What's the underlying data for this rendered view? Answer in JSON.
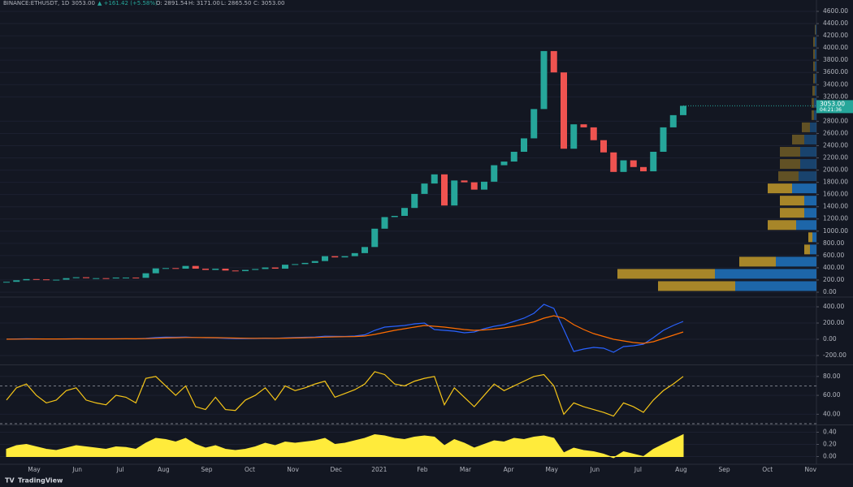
{
  "header": {
    "symbol": "BINANCE:ETHUSDT, 1D",
    "last": "3053.00",
    "change": "▲ +161.42 (+5.58%)",
    "open": "O: 2891.54",
    "high": "H: 3171.00",
    "low": "L: 2865.50",
    "close": "C: 3053.00"
  },
  "price_tag": {
    "price": "3053.00",
    "timer": "04:21:36"
  },
  "x_labels": [
    "May",
    "Jun",
    "Jul",
    "Aug",
    "Sep",
    "Oct",
    "Nov",
    "Dec",
    "2021",
    "Feb",
    "Mar",
    "Apr",
    "May",
    "Jun",
    "Jul",
    "Aug",
    "Sep",
    "Oct",
    "Nov"
  ],
  "footer": "TradingView",
  "chart_data": [
    {
      "type": "candlestick",
      "up_color": "#26a69a",
      "down_color": "#ef5350",
      "close": [
        170,
        195,
        215,
        210,
        200,
        205,
        230,
        245,
        230,
        230,
        225,
        240,
        240,
        235,
        310,
        390,
        395,
        385,
        430,
        385,
        365,
        385,
        355,
        345,
        365,
        380,
        405,
        385,
        450,
        460,
        480,
        510,
        590,
        570,
        590,
        640,
        740,
        1040,
        1230,
        1250,
        1380,
        1610,
        1780,
        1930,
        1420,
        1830,
        1800,
        1680,
        1810,
        2080,
        2140,
        2300,
        2520,
        3000,
        3950,
        3600,
        2350,
        2750,
        2700,
        2490,
        2290,
        1970,
        2160,
        2050,
        1980,
        2300,
        2700,
        2900,
        3053
      ],
      "ylim": [
        -40,
        4680
      ],
      "yticks": [
        {
          "value": 0,
          "label": "0.00"
        },
        {
          "value": 200,
          "label": "200.00"
        },
        {
          "value": 400,
          "label": "400.00"
        },
        {
          "value": 600,
          "label": "600.00"
        },
        {
          "value": 800,
          "label": "800.00"
        },
        {
          "value": 1000,
          "label": "1000.00"
        },
        {
          "value": 1200,
          "label": "1200.00"
        },
        {
          "value": 1400,
          "label": "1400.00"
        },
        {
          "value": 1600,
          "label": "1600.00"
        },
        {
          "value": 1800,
          "label": "1800.00"
        },
        {
          "value": 2000,
          "label": "2000.00"
        },
        {
          "value": 2200,
          "label": "2200.00"
        },
        {
          "value": 2400,
          "label": "2400.00"
        },
        {
          "value": 2600,
          "label": "2600.00"
        },
        {
          "value": 2800,
          "label": "2800.00"
        },
        {
          "value": 3200,
          "label": "3200.00"
        },
        {
          "value": 3400,
          "label": "3400.00"
        },
        {
          "value": 3600,
          "label": "3600.00"
        },
        {
          "value": 3800,
          "label": "3800.00"
        },
        {
          "value": 4000,
          "label": "4000.00"
        },
        {
          "value": 4200,
          "label": "4200.00"
        },
        {
          "value": 4400,
          "label": "4400.00"
        },
        {
          "value": 4600,
          "label": "4600.00"
        }
      ],
      "volume_profile": {
        "levels": [
          100,
          300,
          500,
          700,
          900,
          1100,
          1300,
          1500,
          1700,
          1900,
          2100,
          2300,
          2500,
          2700,
          2900,
          3100,
          3300,
          3500,
          3700,
          3900,
          4100,
          4300
        ],
        "up": [
          100,
          125,
          50,
          8,
          5,
          25,
          15,
          15,
          30,
          22,
          20,
          20,
          15,
          8,
          3,
          3,
          2,
          2,
          2,
          2,
          2,
          1
        ],
        "down": [
          95,
          120,
          45,
          7,
          5,
          35,
          30,
          30,
          30,
          25,
          25,
          25,
          15,
          10,
          3,
          3,
          3,
          2,
          2,
          2,
          2,
          1
        ],
        "up_color": "#1f6fb8",
        "down_color": "#c29a2a"
      }
    },
    {
      "type": "line",
      "ylim": [
        -300,
        500
      ],
      "yticks": [
        {
          "value": 400,
          "label": "400.00"
        },
        {
          "value": 200,
          "label": "200.00"
        },
        {
          "value": 0,
          "label": "0.00"
        },
        {
          "value": -200,
          "label": "-200.00"
        }
      ],
      "series": [
        {
          "color": "#2962ff",
          "values": [
            2,
            4,
            6,
            5,
            4,
            4,
            5,
            6,
            5,
            5,
            5,
            6,
            6,
            5,
            12,
            22,
            26,
            25,
            28,
            22,
            18,
            17,
            12,
            8,
            8,
            10,
            14,
            12,
            18,
            22,
            25,
            28,
            38,
            36,
            35,
            40,
            55,
            110,
            150,
            160,
            170,
            190,
            200,
            120,
            110,
            100,
            80,
            90,
            130,
            160,
            180,
            220,
            260,
            320,
            430,
            380,
            120,
            -150,
            -120,
            -100,
            -110,
            -160,
            -90,
            -80,
            -60,
            20,
            110,
            170,
            220
          ]
        },
        {
          "color": "#ff6d00",
          "values": [
            1,
            2,
            3,
            4,
            4,
            4,
            4,
            5,
            5,
            5,
            5,
            5,
            6,
            6,
            8,
            12,
            16,
            19,
            22,
            22,
            21,
            20,
            18,
            15,
            13,
            12,
            13,
            12,
            14,
            16,
            19,
            22,
            27,
            30,
            32,
            34,
            40,
            60,
            85,
            110,
            130,
            150,
            170,
            160,
            150,
            135,
            120,
            110,
            115,
            125,
            140,
            160,
            185,
            215,
            260,
            290,
            260,
            180,
            120,
            70,
            35,
            0,
            -20,
            -40,
            -50,
            -30,
            10,
            50,
            90
          ]
        }
      ]
    },
    {
      "type": "line",
      "ylim": [
        30,
        91
      ],
      "bands": [
        70,
        30
      ],
      "yticks": [
        {
          "value": 80,
          "label": "80.00"
        },
        {
          "value": 60,
          "label": "60.00"
        },
        {
          "value": 40,
          "label": "40.00"
        }
      ],
      "series": [
        {
          "color": "#f5c518",
          "values": [
            55,
            68,
            72,
            60,
            52,
            55,
            65,
            68,
            55,
            52,
            50,
            60,
            58,
            52,
            78,
            80,
            70,
            60,
            70,
            48,
            45,
            58,
            45,
            44,
            55,
            60,
            68,
            55,
            70,
            65,
            68,
            72,
            75,
            58,
            62,
            66,
            72,
            85,
            82,
            72,
            70,
            75,
            78,
            80,
            50,
            68,
            58,
            48,
            60,
            72,
            65,
            70,
            75,
            80,
            82,
            70,
            40,
            52,
            48,
            45,
            42,
            38,
            52,
            48,
            42,
            55,
            65,
            72,
            80
          ]
        }
      ]
    },
    {
      "type": "area",
      "ylim": [
        -0.1,
        0.5
      ],
      "yticks": [
        {
          "value": 0.4,
          "label": "0.40"
        },
        {
          "value": 0.2,
          "label": "0.20"
        },
        {
          "value": 0,
          "label": "0.00"
        }
      ],
      "series": [
        {
          "color": "#ffeb3b",
          "values": [
            0.12,
            0.18,
            0.2,
            0.16,
            0.12,
            0.1,
            0.14,
            0.18,
            0.16,
            0.14,
            0.12,
            0.16,
            0.15,
            0.12,
            0.22,
            0.3,
            0.28,
            0.24,
            0.3,
            0.2,
            0.14,
            0.18,
            0.12,
            0.1,
            0.12,
            0.16,
            0.22,
            0.18,
            0.24,
            0.22,
            0.24,
            0.26,
            0.3,
            0.2,
            0.22,
            0.26,
            0.3,
            0.36,
            0.34,
            0.3,
            0.28,
            0.32,
            0.34,
            0.32,
            0.18,
            0.28,
            0.22,
            0.14,
            0.2,
            0.26,
            0.24,
            0.3,
            0.28,
            0.32,
            0.34,
            0.3,
            0.06,
            0.14,
            0.1,
            0.08,
            0.04,
            -0.02,
            0.08,
            0.04,
            0,
            0.12,
            0.2,
            0.28,
            0.36
          ]
        }
      ]
    }
  ]
}
